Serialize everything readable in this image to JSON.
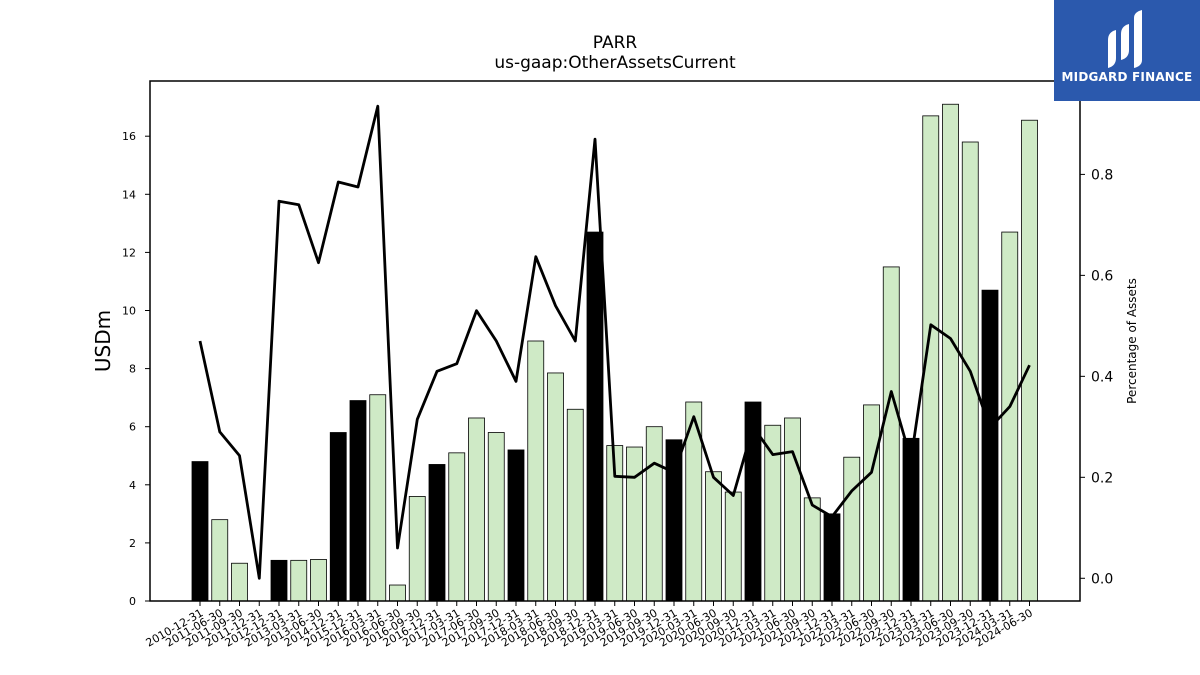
{
  "logo": {
    "text": "MIDGARD FINANCE",
    "color": "#2b59ad"
  },
  "chart_data": {
    "type": "bar",
    "title": "PARR",
    "subtitle": "us-gaap:OtherAssetsCurrent",
    "ylabel": "USDm",
    "y2label": "Percentage of Assets",
    "ylim": [
      0,
      17.9
    ],
    "y2lim": [
      -0.045,
      0.985
    ],
    "yticks": [
      0,
      2,
      4,
      6,
      8,
      10,
      12,
      14,
      16
    ],
    "y2ticks": [
      0.0,
      0.2,
      0.4,
      0.6,
      0.8
    ],
    "colors": {
      "annual_bar": "#000000",
      "quarter_bar": "#cfeac6",
      "line": "#000000"
    },
    "categories": [
      "2010-12-31",
      "2011-06-30",
      "2011-09-30",
      "2011-12-31",
      "2012-12-31",
      "2013-03-31",
      "2013-06-30",
      "2014-12-31",
      "2015-12-31",
      "2016-03-31",
      "2016-06-30",
      "2016-09-30",
      "2016-12-31",
      "2017-03-31",
      "2017-06-30",
      "2017-09-30",
      "2017-12-31",
      "2018-03-31",
      "2018-06-30",
      "2018-09-30",
      "2018-12-31",
      "2019-03-31",
      "2019-06-30",
      "2019-09-30",
      "2019-12-31",
      "2020-03-31",
      "2020-06-30",
      "2020-09-30",
      "2020-12-31",
      "2021-03-31",
      "2021-06-30",
      "2021-09-30",
      "2021-12-31",
      "2022-03-31",
      "2022-06-30",
      "2022-09-30",
      "2022-12-31",
      "2023-03-31",
      "2023-06-30",
      "2023-09-30",
      "2023-12-31",
      "2024-03-31",
      "2024-06-30"
    ],
    "series": [
      {
        "kind": "bar",
        "axis": "left",
        "values": [
          4.8,
          2.8,
          1.3,
          0,
          1.4,
          1.4,
          1.43,
          5.8,
          6.9,
          7.1,
          0.55,
          3.6,
          4.7,
          5.1,
          6.3,
          5.8,
          5.2,
          8.95,
          7.85,
          6.6,
          12.7,
          5.35,
          5.3,
          6.0,
          5.55,
          6.85,
          4.45,
          3.75,
          6.85,
          6.05,
          6.3,
          3.55,
          3.0,
          4.95,
          6.75,
          11.5,
          5.6,
          16.7,
          17.1,
          15.8,
          10.7,
          12.7,
          16.55
        ],
        "annual": [
          true,
          false,
          false,
          true,
          true,
          false,
          false,
          true,
          true,
          false,
          false,
          false,
          true,
          false,
          false,
          false,
          true,
          false,
          false,
          false,
          true,
          false,
          false,
          false,
          true,
          false,
          false,
          false,
          true,
          false,
          false,
          false,
          true,
          false,
          false,
          false,
          true,
          false,
          false,
          false,
          true,
          false,
          false
        ]
      },
      {
        "kind": "line",
        "axis": "right",
        "values": [
          0.47,
          0.29,
          0.243,
          0.0,
          0.747,
          0.74,
          0.625,
          0.785,
          0.775,
          0.935,
          0.06,
          0.315,
          0.41,
          0.425,
          0.53,
          0.47,
          0.39,
          0.637,
          0.54,
          0.47,
          0.87,
          0.202,
          0.2,
          0.228,
          0.21,
          0.32,
          0.2,
          0.164,
          0.3,
          0.245,
          0.251,
          0.145,
          0.122,
          0.173,
          0.21,
          0.37,
          0.235,
          0.502,
          0.475,
          0.41,
          0.298,
          0.34,
          0.422
        ]
      }
    ]
  }
}
